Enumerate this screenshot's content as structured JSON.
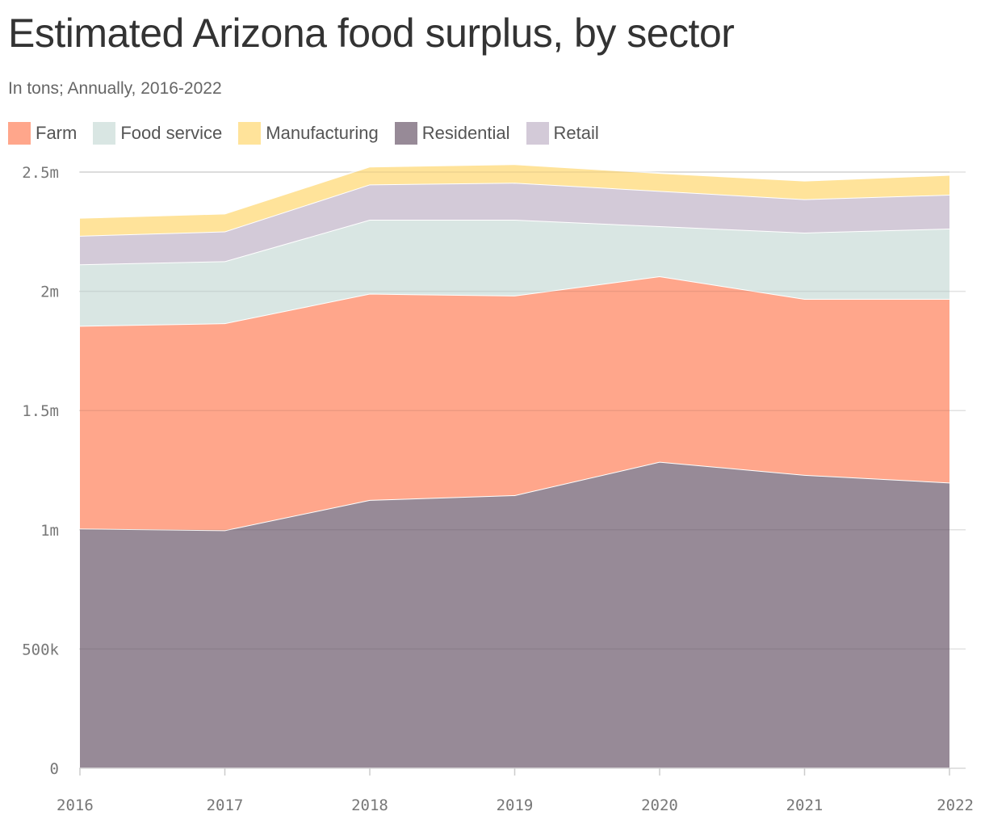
{
  "chart_data": {
    "type": "area",
    "stacked": true,
    "title": "Estimated Arizona food surplus, by sector",
    "subtitle": "In tons; Annually, 2016-2022",
    "x": [
      "2016",
      "2017",
      "2018",
      "2019",
      "2020",
      "2021",
      "2022"
    ],
    "ylim": [
      0,
      2500000
    ],
    "y_ticks": [
      0,
      500000,
      1000000,
      1500000,
      2000000,
      2500000
    ],
    "y_tick_labels": [
      "0",
      "500k",
      "1m",
      "1.5m",
      "2m",
      "2.5m"
    ],
    "grid": true,
    "legend_position": "top-left",
    "legend": [
      "Farm",
      "Food service",
      "Manufacturing",
      "Residential",
      "Retail"
    ],
    "series": [
      {
        "name": "Residential",
        "color": "#978a97",
        "values": [
          1005000,
          998000,
          1125000,
          1145000,
          1285000,
          1230000,
          1198000
        ]
      },
      {
        "name": "Farm",
        "color": "#ffa68b",
        "values": [
          850000,
          868000,
          865000,
          837000,
          778000,
          738000,
          770000
        ]
      },
      {
        "name": "Food service",
        "color": "#d9e6e3",
        "values": [
          258000,
          260000,
          310000,
          318000,
          210000,
          278000,
          295000
        ]
      },
      {
        "name": "Retail",
        "color": "#d3cad8",
        "values": [
          120000,
          125000,
          148000,
          155000,
          148000,
          140000,
          142000
        ]
      },
      {
        "name": "Manufacturing",
        "color": "#ffe39a",
        "values": [
          75000,
          75000,
          75000,
          78000,
          75000,
          78000,
          83000
        ]
      }
    ]
  }
}
